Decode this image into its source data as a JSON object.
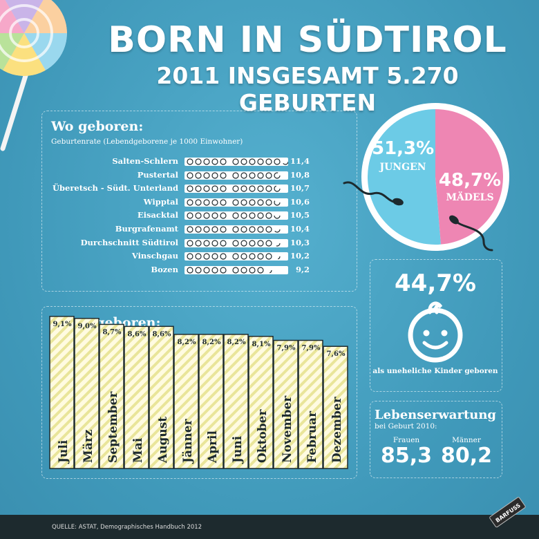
{
  "header": {
    "title": "BORN IN SÜDTIROL",
    "subtitle": "2011 INSGESAMT 5.270 GEBURTEN"
  },
  "wo_geboren": {
    "heading": "Wo geboren:",
    "note": "Geburtenrate (Lebendgeborene je 1000 Einwohner)"
  },
  "wann_geboren": {
    "heading": "Wann geboren:"
  },
  "gender": {
    "boys_pct": "51,3%",
    "boys_label": "JUNGEN",
    "girls_pct": "48,7%",
    "girls_label": "MÄDELS",
    "boys_color": "#6ccbe6",
    "girls_color": "#ee86b3"
  },
  "illegitimate": {
    "pct": "44,7%",
    "label": "als uneheliche Kinder geboren",
    "icon": "baby-face-icon"
  },
  "life_expectancy": {
    "heading": "Lebenserwartung",
    "sub": "bei Geburt 2010:",
    "women_label": "Frauen",
    "women_value": "85,3",
    "men_label": "Männer",
    "men_value": "80,2"
  },
  "footer": {
    "source": "QUELLE:  ASTAT, Demographisches Handbuch 2012",
    "brand": "BARFUSS"
  },
  "chart_data": [
    {
      "type": "bar",
      "orientation": "horizontal",
      "title": "Wo geboren:",
      "subtitle": "Geburtenrate (Lebendgeborene je 1000 Einwohner)",
      "categories": [
        "Salten-Schlern",
        "Pustertal",
        "Überetsch - Südt. Unterland",
        "Wipptal",
        "Eisacktal",
        "Burgrafenamt",
        "Durchschnitt Südtirol",
        "Vinschgau",
        "Bozen"
      ],
      "values": [
        11.4,
        10.8,
        10.7,
        10.6,
        10.5,
        10.4,
        10.3,
        10.2,
        9.2
      ],
      "labels": [
        "11,4",
        "10,8",
        "10,7",
        "10,6",
        "10,5",
        "10,4",
        "10,3",
        "10,2",
        "9,2"
      ]
    },
    {
      "type": "bar",
      "orientation": "vertical",
      "title": "Wann geboren:",
      "categories": [
        "Juli",
        "März",
        "September",
        "Mai",
        "August",
        "Jänner",
        "April",
        "Juni",
        "Oktober",
        "November",
        "Februar",
        "Dezember"
      ],
      "values": [
        9.1,
        9.0,
        8.7,
        8.6,
        8.6,
        8.2,
        8.2,
        8.2,
        8.1,
        7.9,
        7.9,
        7.6
      ],
      "labels": [
        "9,1%",
        "9,0%",
        "8,7%",
        "8,6%",
        "8,6%",
        "8,2%",
        "8,2%",
        "8,2%",
        "8,1%",
        "7,9%",
        "7,9%",
        "7,6%"
      ]
    },
    {
      "type": "pie",
      "categories": [
        "JUNGEN",
        "MÄDELS"
      ],
      "values": [
        51.3,
        48.7
      ]
    }
  ]
}
